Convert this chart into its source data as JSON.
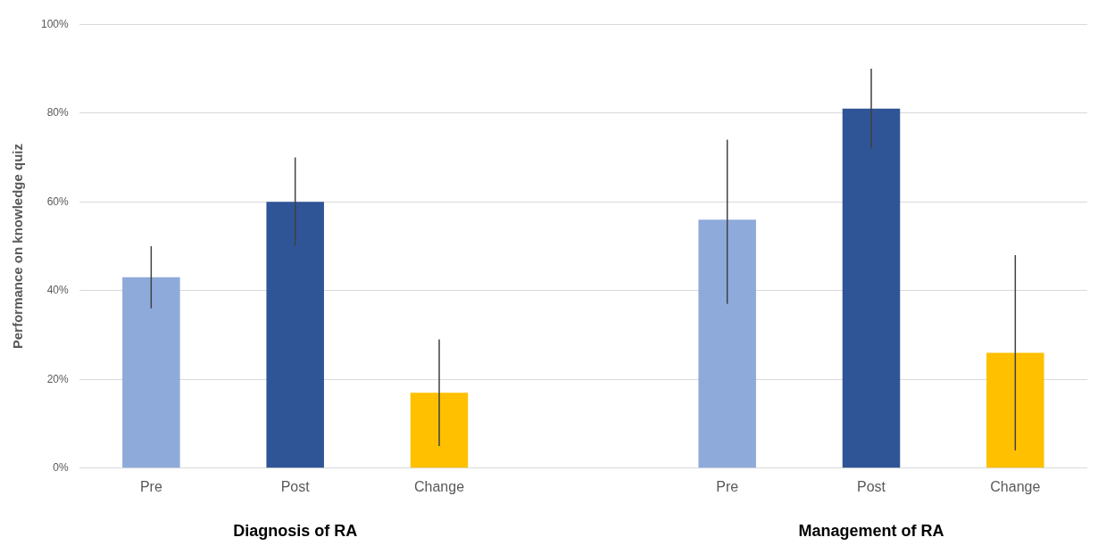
{
  "chart_data": {
    "type": "bar",
    "ylabel": "Performance on knowledge quiz",
    "categories": [
      "Pre",
      "Post",
      "Change",
      null,
      "Pre",
      "Post",
      "Change"
    ],
    "values": [
      43,
      60,
      17,
      null,
      56,
      81,
      26
    ],
    "colors": [
      "#8eaadb",
      "#2f5597",
      "#ffc000",
      null,
      "#8eaadb",
      "#2f5597",
      "#ffc000"
    ],
    "errors": [
      [
        36,
        50
      ],
      [
        50,
        70
      ],
      [
        5,
        29
      ],
      null,
      [
        37,
        74
      ],
      [
        72,
        90
      ],
      [
        4,
        48
      ]
    ],
    "ylim": [
      0,
      100
    ],
    "yticks": [
      {
        "value": 0,
        "label": "0%"
      },
      {
        "value": 20,
        "label": "20%"
      },
      {
        "value": 40,
        "label": "40%"
      },
      {
        "value": 60,
        "label": "60%"
      },
      {
        "value": 80,
        "label": "80%"
      },
      {
        "value": 100,
        "label": "100%"
      }
    ],
    "grid": "y",
    "annotations": [
      "Diagnosis of RA",
      "Management of RA"
    ]
  }
}
